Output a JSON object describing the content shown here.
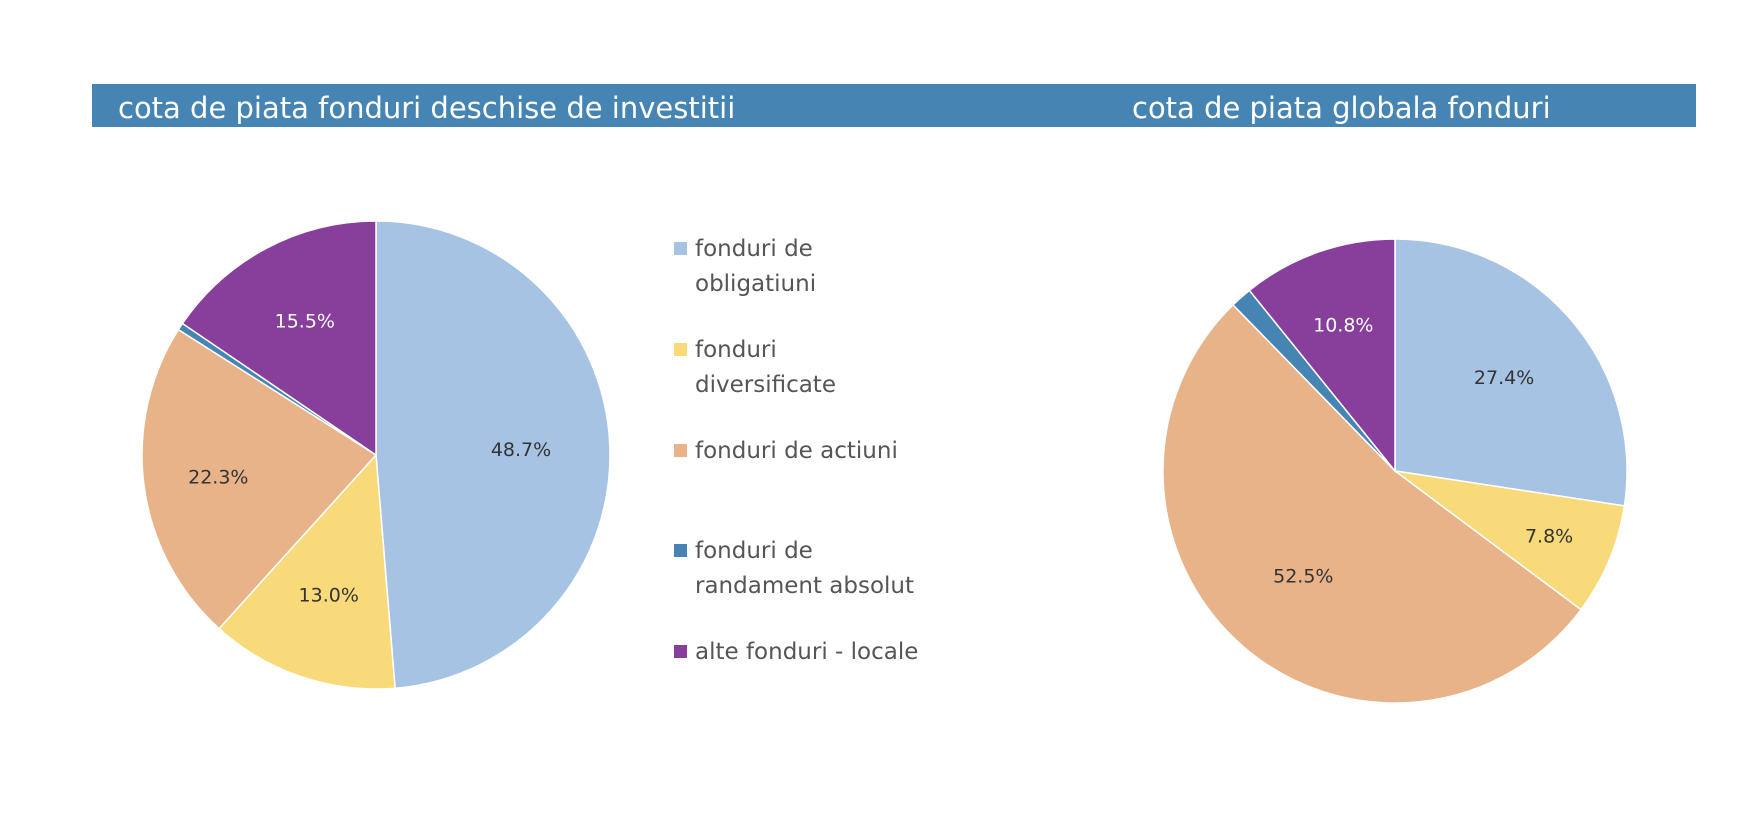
{
  "header": {
    "left_title": "cota de piata fonduri deschise de investitii",
    "right_title": "cota de piata globala fonduri",
    "bar_color": "#4584b3"
  },
  "legend": {
    "items": [
      {
        "lines": [
          "fonduri de",
          "obligatiuni"
        ],
        "color": "#a6c3e4"
      },
      {
        "lines": [
          "fonduri",
          "diversificate"
        ],
        "color": "#f8da7a"
      },
      {
        "lines": [
          "fonduri de actiuni"
        ],
        "color": "#e8b388"
      },
      {
        "lines": [
          "fonduri de",
          "randament absolut"
        ],
        "color": "#4584b3"
      },
      {
        "lines": [
          "alte fonduri - locale"
        ],
        "color": "#883f9c"
      }
    ]
  },
  "chart_data": [
    {
      "type": "pie",
      "title": "cota de piata fonduri deschise de investitii",
      "categories": [
        "fonduri de obligatiuni",
        "fonduri diversificate",
        "fonduri de actiuni",
        "fonduri de randament absolut",
        "alte fonduri - locale"
      ],
      "values": [
        48.7,
        13.0,
        22.3,
        0.5,
        15.5
      ],
      "labels": [
        "48.7%",
        "13.0%",
        "22.3%",
        "",
        "15.5%"
      ],
      "colors": [
        "#a6c3e4",
        "#f8da7a",
        "#e8b388",
        "#4584b3",
        "#883f9c"
      ],
      "label_colors": [
        "#333333",
        "#333333",
        "#333333",
        "#333333",
        "#ffffff"
      ],
      "start_angle_deg": 0,
      "direction": "clockwise"
    },
    {
      "type": "pie",
      "title": "cota de piata globala fonduri",
      "categories": [
        "fonduri de obligatiuni",
        "fonduri diversificate",
        "fonduri de actiuni",
        "fonduri de randament absolut",
        "alte fonduri - locale"
      ],
      "values": [
        27.4,
        7.8,
        52.5,
        1.5,
        10.8
      ],
      "labels": [
        "27.4%",
        "7.8%",
        "52.5%",
        "",
        "10.8%"
      ],
      "colors": [
        "#a6c3e4",
        "#f8da7a",
        "#e8b388",
        "#4584b3",
        "#883f9c"
      ],
      "label_colors": [
        "#333333",
        "#333333",
        "#333333",
        "#333333",
        "#ffffff"
      ],
      "start_angle_deg": 0,
      "direction": "clockwise"
    }
  ]
}
